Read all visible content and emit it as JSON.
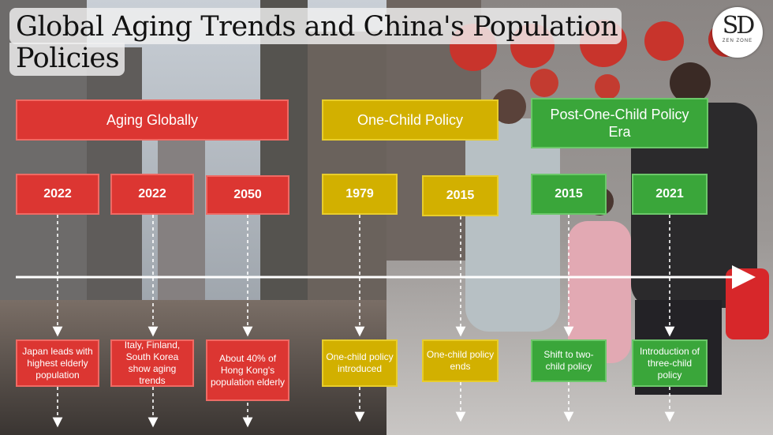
{
  "title": "Global Aging Trends and China's Population Policies",
  "logo": {
    "mark": "SD",
    "sub": "ZEN ZONE"
  },
  "phases": [
    {
      "name": "Aging Globally",
      "color": "#dc3632"
    },
    {
      "name": "One-Child Policy",
      "color": "#d2b000"
    },
    {
      "name": "Post-One-Child Policy Era",
      "color": "#3aa63a"
    }
  ],
  "events": [
    {
      "year": "2022",
      "desc": "Japan leads with highest elderly population"
    },
    {
      "year": "2022",
      "desc": "Italy, Finland, South Korea show aging trends"
    },
    {
      "year": "2050",
      "desc": "About 40% of Hong Kong's population elderly"
    },
    {
      "year": "1979",
      "desc": "One-child policy introduced"
    },
    {
      "year": "2015",
      "desc": "One-child policy ends"
    },
    {
      "year": "2015",
      "desc": "Shift to two-child policy"
    },
    {
      "year": "2021",
      "desc": "Introduction of three-child policy"
    }
  ]
}
